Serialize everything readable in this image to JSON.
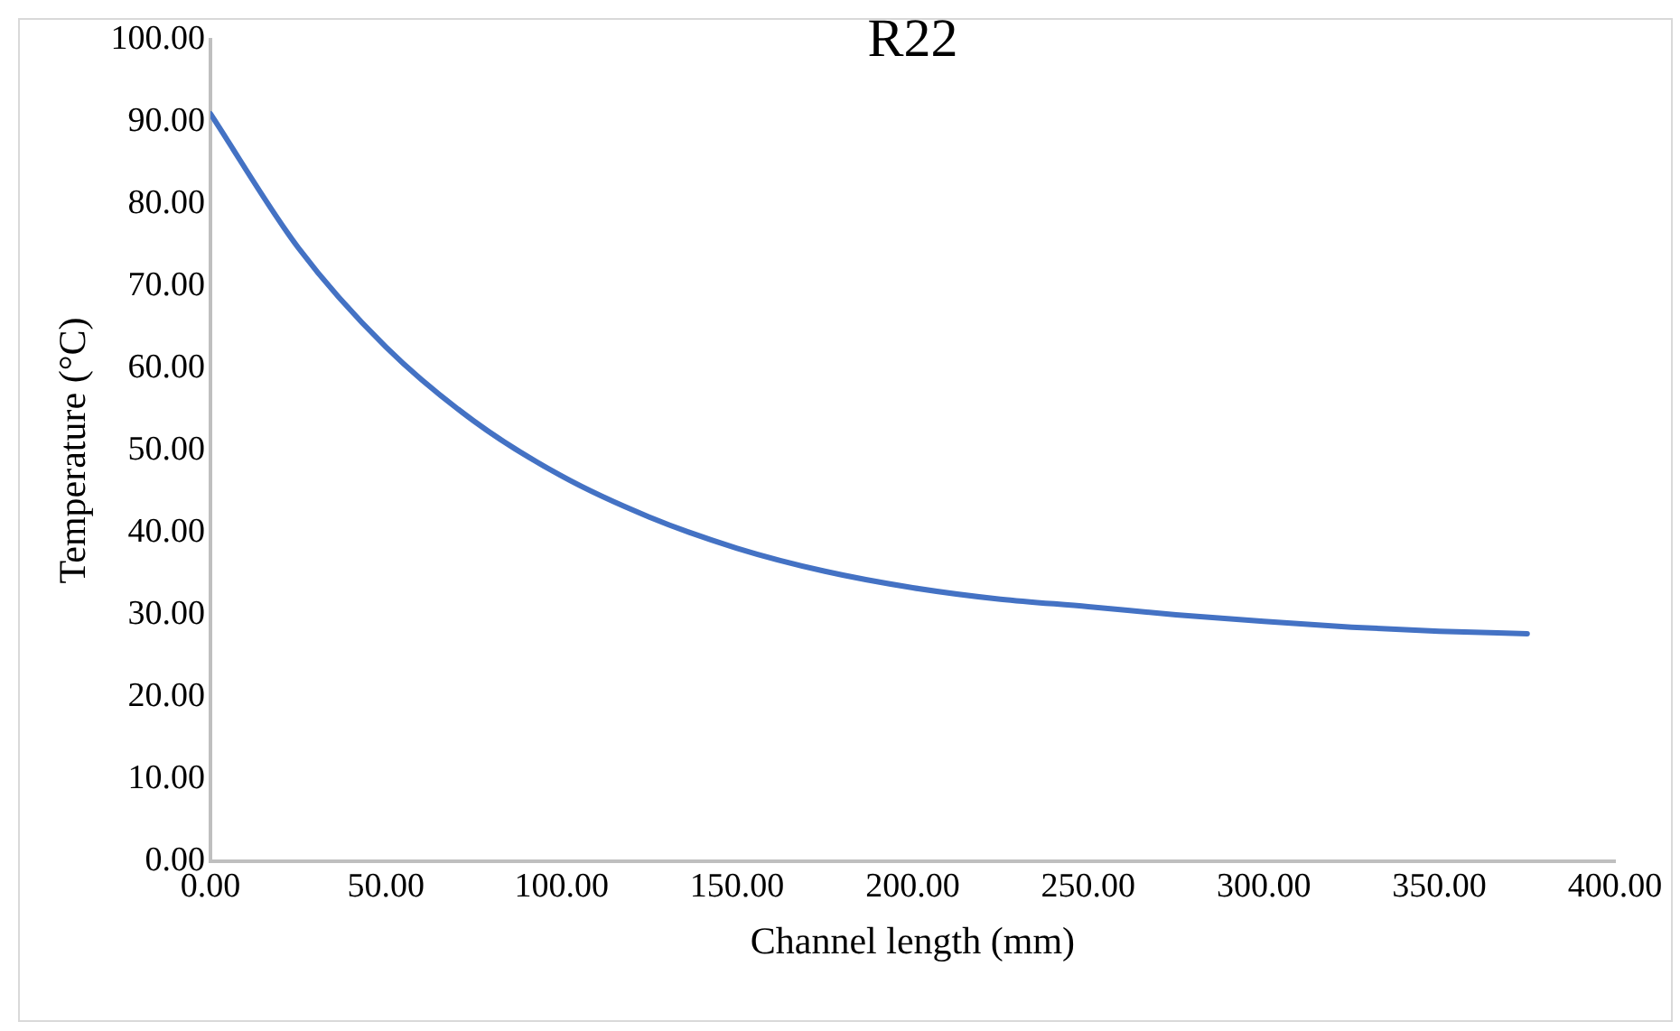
{
  "chart_data": {
    "type": "line",
    "title": "R22",
    "xlabel": "Channel length (mm)",
    "ylabel": "Temperature (°C)",
    "x": [
      0,
      25,
      50,
      75,
      100,
      125,
      150,
      175,
      200,
      225,
      250,
      275,
      300,
      325,
      350,
      375
    ],
    "series": [
      {
        "color": "#4472c4",
        "values": [
          91.0,
          74.7,
          62.6,
          53.6,
          46.9,
          41.9,
          38.1,
          35.3,
          33.3,
          31.9,
          31.0,
          30.0,
          29.2,
          28.5,
          28.0,
          27.7
        ]
      }
    ],
    "xlim": [
      0,
      400
    ],
    "xticks": [
      {
        "value": 0,
        "label": "0.00"
      },
      {
        "value": 50,
        "label": "50.00"
      },
      {
        "value": 100,
        "label": "100.00"
      },
      {
        "value": 150,
        "label": "150.00"
      },
      {
        "value": 200,
        "label": "200.00"
      },
      {
        "value": 250,
        "label": "250.00"
      },
      {
        "value": 300,
        "label": "300.00"
      },
      {
        "value": 350,
        "label": "350.00"
      },
      {
        "value": 400,
        "label": "400.00"
      }
    ],
    "ylim": [
      0,
      100
    ],
    "yticks": [
      {
        "value": 0,
        "label": "0.00"
      },
      {
        "value": 10,
        "label": "10.00"
      },
      {
        "value": 20,
        "label": "20.00"
      },
      {
        "value": 30,
        "label": "30.00"
      },
      {
        "value": 40,
        "label": "40.00"
      },
      {
        "value": 50,
        "label": "50.00"
      },
      {
        "value": 60,
        "label": "60.00"
      },
      {
        "value": 70,
        "label": "70.00"
      },
      {
        "value": 80,
        "label": "80.00"
      },
      {
        "value": 90,
        "label": "90.00"
      },
      {
        "value": 100,
        "label": "100.00"
      }
    ],
    "grid": false,
    "legend": false,
    "marker": "none",
    "line_style": "solid"
  }
}
